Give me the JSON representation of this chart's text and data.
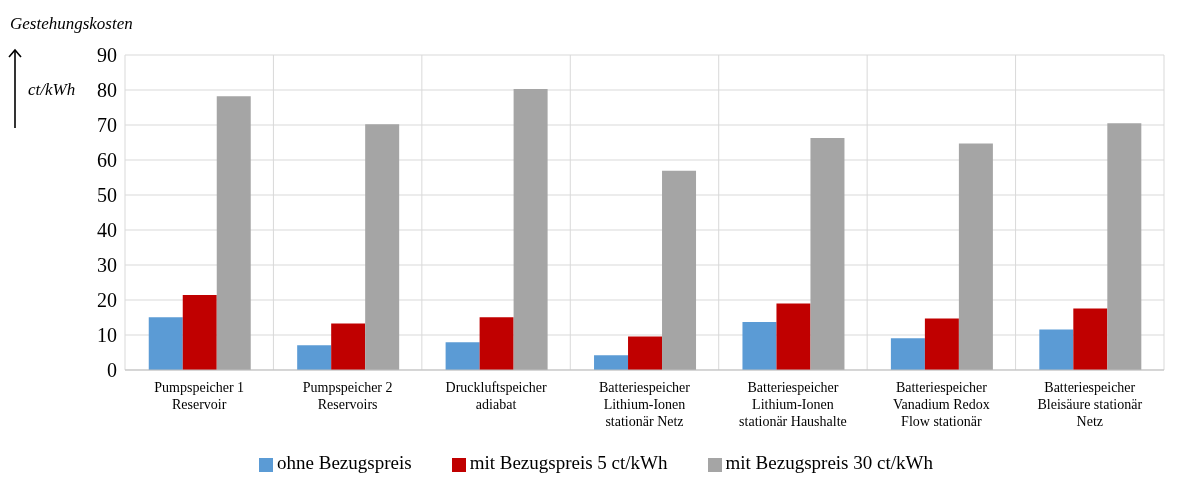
{
  "chart_data": {
    "type": "bar",
    "ylabel": "Gestehungskosten",
    "annotations": [
      "ct/kWh"
    ],
    "categories": [
      "Pumpspeicher 1\nReservoir",
      "Pumpspeicher 2\nReservoirs",
      "Druckluftspeicher\nadiabat",
      "Batteriespeicher\nLithium-Ionen\nstationär Netz",
      "Batteriespeicher\nLithium-Ionen\nstationär Haushalte",
      "Batteriespeicher\nVanadium Redox\nFlow stationär",
      "Batteriespeicher\nBleisäure stationär\nNetz"
    ],
    "series": [
      {
        "name": "ohne Bezugspreis",
        "color": "#5b9bd5",
        "values": [
          15.1,
          7.1,
          7.9,
          4.2,
          13.7,
          9.1,
          11.6
        ]
      },
      {
        "name": "mit Bezugspreis 5 ct/kWh",
        "color": "#c00000",
        "values": [
          21.4,
          13.3,
          15.1,
          9.6,
          19.0,
          14.7,
          17.6
        ]
      },
      {
        "name": "mit Bezugspreis 30 ct/kWh",
        "color": "#a5a5a5",
        "values": [
          78.2,
          70.2,
          80.3,
          56.9,
          66.3,
          64.7,
          70.5
        ]
      }
    ],
    "ylim": [
      0,
      90
    ],
    "yticks": [
      0,
      10,
      20,
      30,
      40,
      50,
      60,
      70,
      80,
      90
    ],
    "grid": true,
    "legend": "bottom"
  }
}
